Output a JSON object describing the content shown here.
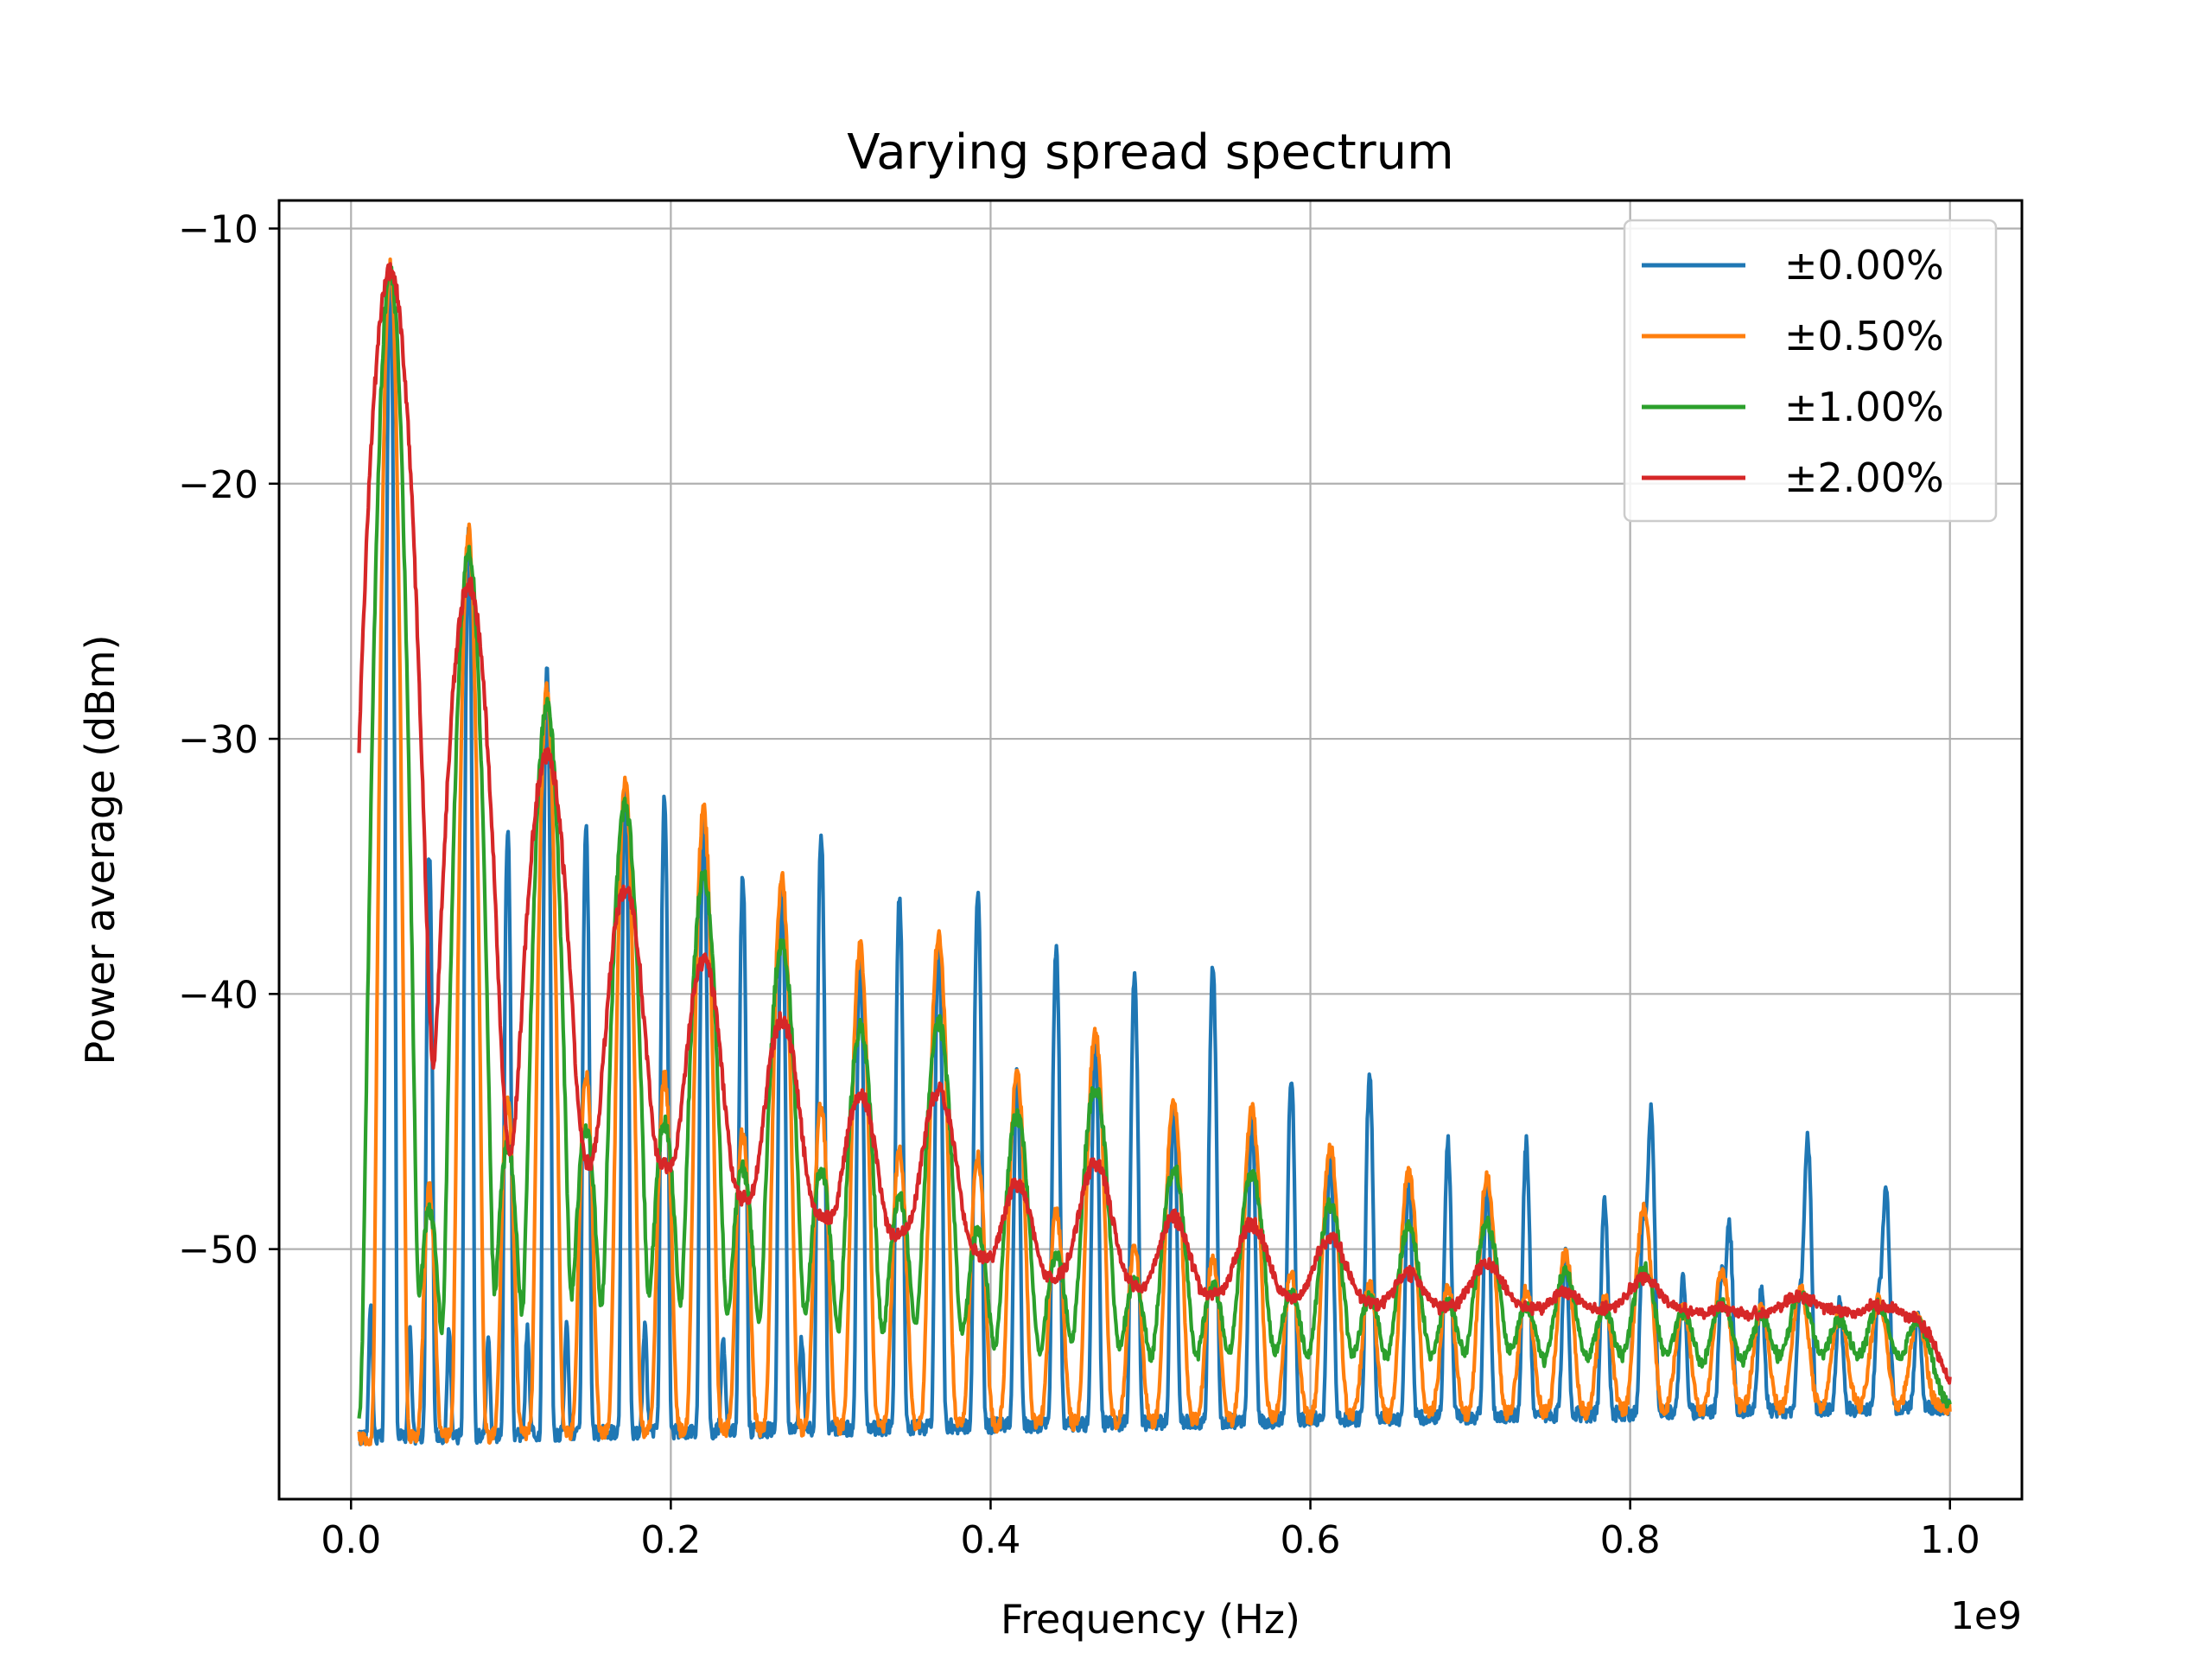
{
  "chart_data": {
    "type": "line",
    "title": "Varying spread spectrum",
    "xlabel": "Frequency (Hz)",
    "ylabel": "Power average (dBm)",
    "x_offset_label": "1e9",
    "xlim": [
      -0.045,
      1.045
    ],
    "ylim": [
      -59.8,
      -8.9
    ],
    "x_ticks": [
      0.0,
      0.2,
      0.4,
      0.6,
      0.8,
      1.0
    ],
    "x_tick_labels": [
      "0.0",
      "0.2",
      "0.4",
      "0.6",
      "0.8",
      "1.0"
    ],
    "y_ticks": [
      -10,
      -20,
      -30,
      -40,
      -50
    ],
    "y_tick_labels": [
      "−10",
      "−20",
      "−30",
      "−40",
      "−50"
    ],
    "grid": true,
    "legend_position": "top-right",
    "x_range": [
      0.005,
      1.0
    ],
    "harmonic_spacing": 0.0245,
    "series": [
      {
        "name": "±0.00%",
        "color": "#1f77b4",
        "peaks": [
          {
            "x": 0.0245,
            "y": -11.3
          },
          {
            "x": 0.0735,
            "y": -21.6
          },
          {
            "x": 0.1225,
            "y": -27.0
          },
          {
            "x": 0.1715,
            "y": -31.5
          },
          {
            "x": 0.2205,
            "y": -32.6
          },
          {
            "x": 0.2695,
            "y": -35.3
          },
          {
            "x": 0.3185,
            "y": -38.0
          },
          {
            "x": 0.3675,
            "y": -37.6
          },
          {
            "x": 0.4165,
            "y": -43.0
          },
          {
            "x": 0.4655,
            "y": -41.4
          },
          {
            "x": 0.5145,
            "y": -44.2
          },
          {
            "x": 0.5635,
            "y": -44.6
          },
          {
            "x": 0.6125,
            "y": -46.2
          },
          {
            "x": 0.6615,
            "y": -47.2
          },
          {
            "x": 0.7105,
            "y": -47.5
          },
          {
            "x": 0.7595,
            "y": -51.0
          },
          {
            "x": 0.8085,
            "y": -49.0
          },
          {
            "x": 0.8575,
            "y": -52.0
          },
          {
            "x": 0.9065,
            "y": -53.2
          },
          {
            "x": 0.9555,
            "y": -53.4
          },
          {
            "x": 0.049,
            "y": -34.1
          },
          {
            "x": 0.098,
            "y": -33.2
          },
          {
            "x": 0.147,
            "y": -33.2
          },
          {
            "x": 0.196,
            "y": -32.0
          },
          {
            "x": 0.245,
            "y": -35.1
          },
          {
            "x": 0.294,
            "y": -33.3
          },
          {
            "x": 0.343,
            "y": -35.9
          },
          {
            "x": 0.392,
            "y": -35.8
          },
          {
            "x": 0.441,
            "y": -38.1
          },
          {
            "x": 0.49,
            "y": -39.0
          },
          {
            "x": 0.539,
            "y": -38.8
          },
          {
            "x": 0.588,
            "y": -43.1
          },
          {
            "x": 0.637,
            "y": -43.0
          },
          {
            "x": 0.686,
            "y": -45.9
          },
          {
            "x": 0.735,
            "y": -45.9
          },
          {
            "x": 0.784,
            "y": -48.3
          },
          {
            "x": 0.833,
            "y": -52.2
          },
          {
            "x": 0.882,
            "y": -53.0
          },
          {
            "x": 0.931,
            "y": -53.8
          },
          {
            "x": 0.98,
            "y": -54.6
          },
          {
            "x": 0.0123,
            "y": -53.2
          },
          {
            "x": 0.0368,
            "y": -54.9
          },
          {
            "x": 0.0613,
            "y": -54.8
          },
          {
            "x": 0.0858,
            "y": -55.3
          },
          {
            "x": 0.1103,
            "y": -55.0
          },
          {
            "x": 0.1348,
            "y": -54.4
          },
          {
            "x": 0.1838,
            "y": -54.7
          },
          {
            "x": 0.2328,
            "y": -55.8
          },
          {
            "x": 0.2818,
            "y": -55.6
          },
          {
            "x": 0.813,
            "y": -44.6
          },
          {
            "x": 0.862,
            "y": -49.5
          },
          {
            "x": 0.911,
            "y": -45.7
          },
          {
            "x": 0.96,
            "y": -47.9
          }
        ]
      },
      {
        "name": "±0.50%",
        "color": "#ff7f0e",
        "peaks": [
          {
            "x": 0.0245,
            "y": -11.2
          },
          {
            "x": 0.0735,
            "y": -21.5
          },
          {
            "x": 0.1225,
            "y": -27.8
          },
          {
            "x": 0.1715,
            "y": -31.4
          },
          {
            "x": 0.2205,
            "y": -32.5
          },
          {
            "x": 0.2695,
            "y": -35.2
          },
          {
            "x": 0.3185,
            "y": -37.9
          },
          {
            "x": 0.3675,
            "y": -37.5
          },
          {
            "x": 0.4165,
            "y": -42.9
          },
          {
            "x": 0.4655,
            "y": -41.3
          },
          {
            "x": 0.5145,
            "y": -44.1
          },
          {
            "x": 0.5635,
            "y": -44.5
          },
          {
            "x": 0.6125,
            "y": -46.1
          },
          {
            "x": 0.6615,
            "y": -47.1
          },
          {
            "x": 0.7105,
            "y": -47.4
          },
          {
            "x": 0.7595,
            "y": -50.9
          },
          {
            "x": 0.8085,
            "y": -48.9
          },
          {
            "x": 0.8575,
            "y": -51.9
          },
          {
            "x": 0.9065,
            "y": -52.9
          },
          {
            "x": 0.9555,
            "y": -53.6
          },
          {
            "x": 0.049,
            "y": -47.7
          },
          {
            "x": 0.098,
            "y": -44.2
          },
          {
            "x": 0.147,
            "y": -43.0
          },
          {
            "x": 0.196,
            "y": -43.1
          },
          {
            "x": 0.245,
            "y": -45.3
          },
          {
            "x": 0.294,
            "y": -44.3
          },
          {
            "x": 0.343,
            "y": -46.2
          },
          {
            "x": 0.392,
            "y": -46.5
          },
          {
            "x": 0.441,
            "y": -49.0
          },
          {
            "x": 0.49,
            "y": -50.5
          },
          {
            "x": 0.539,
            "y": -51.2
          },
          {
            "x": 0.588,
            "y": -52.0
          },
          {
            "x": 0.637,
            "y": -52.5
          },
          {
            "x": 0.686,
            "y": -52.8
          },
          {
            "x": 0.735,
            "y": -53.0
          },
          {
            "x": 0.784,
            "y": -53.5
          },
          {
            "x": 0.833,
            "y": -54.0
          },
          {
            "x": 0.882,
            "y": -54.2
          },
          {
            "x": 0.931,
            "y": -54.5
          },
          {
            "x": 0.98,
            "y": -54.8
          }
        ]
      },
      {
        "name": "±1.00%",
        "color": "#2ca02c",
        "peaks": [
          {
            "x": 0.0245,
            "y": -11.4
          },
          {
            "x": 0.0735,
            "y": -22.3
          },
          {
            "x": 0.1225,
            "y": -28.3
          },
          {
            "x": 0.1715,
            "y": -32.3
          },
          {
            "x": 0.2205,
            "y": -35.1
          },
          {
            "x": 0.2695,
            "y": -37.7
          },
          {
            "x": 0.3185,
            "y": -41.1
          },
          {
            "x": 0.3675,
            "y": -40.9
          },
          {
            "x": 0.4165,
            "y": -44.7
          },
          {
            "x": 0.4655,
            "y": -43.5
          },
          {
            "x": 0.5145,
            "y": -46.9
          },
          {
            "x": 0.5635,
            "y": -47.2
          },
          {
            "x": 0.6125,
            "y": -48.6
          },
          {
            "x": 0.6615,
            "y": -49.7
          },
          {
            "x": 0.7105,
            "y": -49.5
          },
          {
            "x": 0.7595,
            "y": -52.0
          },
          {
            "x": 0.8085,
            "y": -51.8
          },
          {
            "x": 0.8575,
            "y": -53.8
          },
          {
            "x": 0.9065,
            "y": -53.3
          },
          {
            "x": 0.9555,
            "y": -54.1
          },
          {
            "x": 0.049,
            "y": -48.7
          },
          {
            "x": 0.098,
            "y": -45.9
          },
          {
            "x": 0.147,
            "y": -45.3
          },
          {
            "x": 0.196,
            "y": -45.0
          },
          {
            "x": 0.245,
            "y": -46.9
          },
          {
            "x": 0.294,
            "y": -47.0
          },
          {
            "x": 0.343,
            "y": -48.2
          },
          {
            "x": 0.392,
            "y": -49.8
          },
          {
            "x": 0.441,
            "y": -51.0
          },
          {
            "x": 0.49,
            "y": -52.3
          },
          {
            "x": 0.539,
            "y": -52.6
          },
          {
            "x": 0.588,
            "y": -53.0
          },
          {
            "x": 0.637,
            "y": -53.3
          },
          {
            "x": 0.686,
            "y": -53.6
          },
          {
            "x": 0.735,
            "y": -54.0
          },
          {
            "x": 0.784,
            "y": -54.3
          },
          {
            "x": 0.833,
            "y": -54.5
          },
          {
            "x": 0.882,
            "y": -54.8
          },
          {
            "x": 0.931,
            "y": -55.0
          },
          {
            "x": 0.98,
            "y": -55.2
          }
        ]
      },
      {
        "name": "±2.00%",
        "color": "#d62728",
        "peaks": [
          {
            "x": 0.0245,
            "y": -11.3
          },
          {
            "x": 0.0735,
            "y": -23.6
          },
          {
            "x": 0.1225,
            "y": -30.3
          },
          {
            "x": 0.1715,
            "y": -35.6
          },
          {
            "x": 0.2205,
            "y": -38.4
          },
          {
            "x": 0.2695,
            "y": -40.8
          },
          {
            "x": 0.3185,
            "y": -43.8
          },
          {
            "x": 0.3675,
            "y": -43.7
          },
          {
            "x": 0.4165,
            "y": -47.7
          },
          {
            "x": 0.4655,
            "y": -46.8
          },
          {
            "x": 0.5145,
            "y": -49.3
          },
          {
            "x": 0.5635,
            "y": -49.6
          },
          {
            "x": 0.6125,
            "y": -50.3
          },
          {
            "x": 0.6615,
            "y": -52.3
          },
          {
            "x": 0.7105,
            "y": -51.8
          },
          {
            "x": 0.7595,
            "y": -53.5
          },
          {
            "x": 0.8085,
            "y": -52.8
          },
          {
            "x": 0.8575,
            "y": -54.8
          },
          {
            "x": 0.9065,
            "y": -54.1
          },
          {
            "x": 0.9555,
            "y": -54.9
          },
          {
            "x": 0.049,
            "y": -51.5
          },
          {
            "x": 0.098,
            "y": -48.5
          },
          {
            "x": 0.147,
            "y": -47.5
          },
          {
            "x": 0.196,
            "y": -47.3
          },
          {
            "x": 0.245,
            "y": -48.8
          },
          {
            "x": 0.294,
            "y": -49.5
          },
          {
            "x": 0.343,
            "y": -50.5
          },
          {
            "x": 0.392,
            "y": -51.5
          },
          {
            "x": 0.441,
            "y": -52.8
          },
          {
            "x": 0.49,
            "y": -53.5
          },
          {
            "x": 0.539,
            "y": -54.0
          },
          {
            "x": 0.588,
            "y": -54.3
          },
          {
            "x": 0.637,
            "y": -54.5
          },
          {
            "x": 0.686,
            "y": -54.8
          },
          {
            "x": 0.735,
            "y": -55.0
          },
          {
            "x": 0.784,
            "y": -55.2
          },
          {
            "x": 0.833,
            "y": -55.3
          },
          {
            "x": 0.882,
            "y": -55.5
          },
          {
            "x": 0.931,
            "y": -55.6
          },
          {
            "x": 0.98,
            "y": -55.7
          }
        ]
      }
    ],
    "noise_floor": {
      "start": -57.4,
      "end": -56.2
    }
  }
}
